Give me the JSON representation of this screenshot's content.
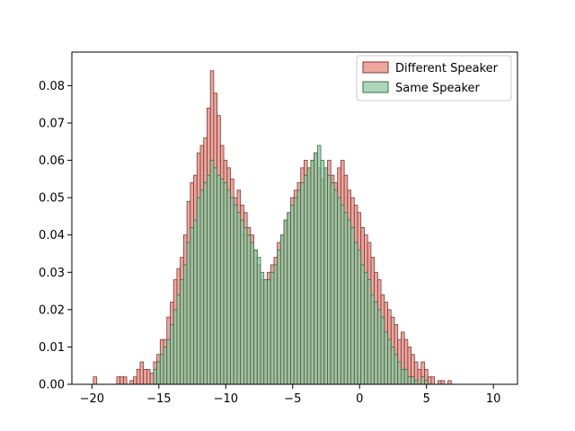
{
  "chart_data": {
    "type": "bar",
    "title": "",
    "xlabel": "",
    "ylabel": "",
    "xlim": [
      -21.5,
      11.8
    ],
    "ylim": [
      0,
      0.089
    ],
    "grid": false,
    "legend": {
      "placement": "top-right"
    },
    "bin_width": 0.25,
    "x_ticks": [
      -20,
      -15,
      -10,
      -5,
      0,
      5,
      10
    ],
    "x_tick_labels": [
      "−20",
      "−15",
      "−10",
      "−5",
      "0",
      "5",
      "10"
    ],
    "y_ticks": [
      0,
      0.01,
      0.02,
      0.03,
      0.04,
      0.05,
      0.06,
      0.07,
      0.08
    ],
    "y_tick_labels": [
      "0.00",
      "0.01",
      "0.02",
      "0.03",
      "0.04",
      "0.05",
      "0.06",
      "0.07",
      "0.08"
    ],
    "series": [
      {
        "name": "Different Speaker",
        "color": "#e8837a",
        "edge": "#7a3a35",
        "start": -19.9,
        "values": [
          0.002,
          0,
          0,
          0,
          0,
          0,
          0,
          0.002,
          0.002,
          0.002,
          0,
          0.001,
          0.002,
          0.004,
          0.006,
          0.004,
          0.004,
          0.003,
          0.006,
          0.008,
          0.012,
          0.012,
          0.018,
          0.022,
          0.028,
          0.031,
          0.034,
          0.04,
          0.049,
          0.054,
          0.056,
          0.062,
          0.064,
          0.066,
          0.074,
          0.084,
          0.078,
          0.072,
          0.064,
          0.06,
          0.058,
          0.055,
          0.05,
          0.052,
          0.048,
          0.046,
          0.042,
          0.04,
          0.036,
          0.032,
          0.028,
          0.028,
          0.03,
          0.032,
          0.034,
          0.038,
          0.04,
          0.044,
          0.046,
          0.05,
          0.052,
          0.054,
          0.058,
          0.06,
          0.058,
          0.06,
          0.062,
          0.058,
          0.055,
          0.058,
          0.06,
          0.056,
          0.054,
          0.058,
          0.06,
          0.056,
          0.052,
          0.05,
          0.048,
          0.046,
          0.042,
          0.04,
          0.038,
          0.034,
          0.03,
          0.028,
          0.024,
          0.022,
          0.02,
          0.018,
          0.016,
          0.012,
          0.014,
          0.012,
          0.01,
          0.008,
          0.006,
          0.004,
          0.006,
          0.004,
          0.002,
          0.002,
          0,
          0.001,
          0.001,
          0,
          0.001,
          0,
          0,
          0,
          0,
          0,
          0,
          0,
          0,
          0,
          0,
          0,
          0,
          0,
          0,
          0
        ]
      },
      {
        "name": "Same Speaker",
        "color": "#8cc79f",
        "edge": "#3b6b4a",
        "start": -19.9,
        "values": [
          0,
          0,
          0,
          0,
          0,
          0,
          0,
          0,
          0,
          0,
          0,
          0,
          0,
          0,
          0,
          0,
          0,
          0,
          0.004,
          0.006,
          0.008,
          0.01,
          0.012,
          0.016,
          0.02,
          0.024,
          0.028,
          0.032,
          0.038,
          0.042,
          0.044,
          0.05,
          0.052,
          0.054,
          0.056,
          0.06,
          0.058,
          0.056,
          0.055,
          0.054,
          0.052,
          0.05,
          0.048,
          0.046,
          0.044,
          0.042,
          0.04,
          0.038,
          0.036,
          0.034,
          0.03,
          0.028,
          0.028,
          0.03,
          0.032,
          0.036,
          0.04,
          0.044,
          0.046,
          0.048,
          0.05,
          0.052,
          0.054,
          0.056,
          0.058,
          0.06,
          0.062,
          0.064,
          0.06,
          0.058,
          0.056,
          0.054,
          0.052,
          0.05,
          0.048,
          0.046,
          0.044,
          0.042,
          0.038,
          0.036,
          0.032,
          0.03,
          0.028,
          0.024,
          0.022,
          0.02,
          0.018,
          0.014,
          0.012,
          0.01,
          0.008,
          0.006,
          0.004,
          0.004,
          0.002,
          0.002,
          0.001,
          0,
          0.002,
          0.001,
          0,
          0,
          0,
          0,
          0,
          0,
          0,
          0,
          0,
          0,
          0,
          0,
          0,
          0,
          0,
          0,
          0,
          0,
          0,
          0
        ]
      }
    ]
  }
}
